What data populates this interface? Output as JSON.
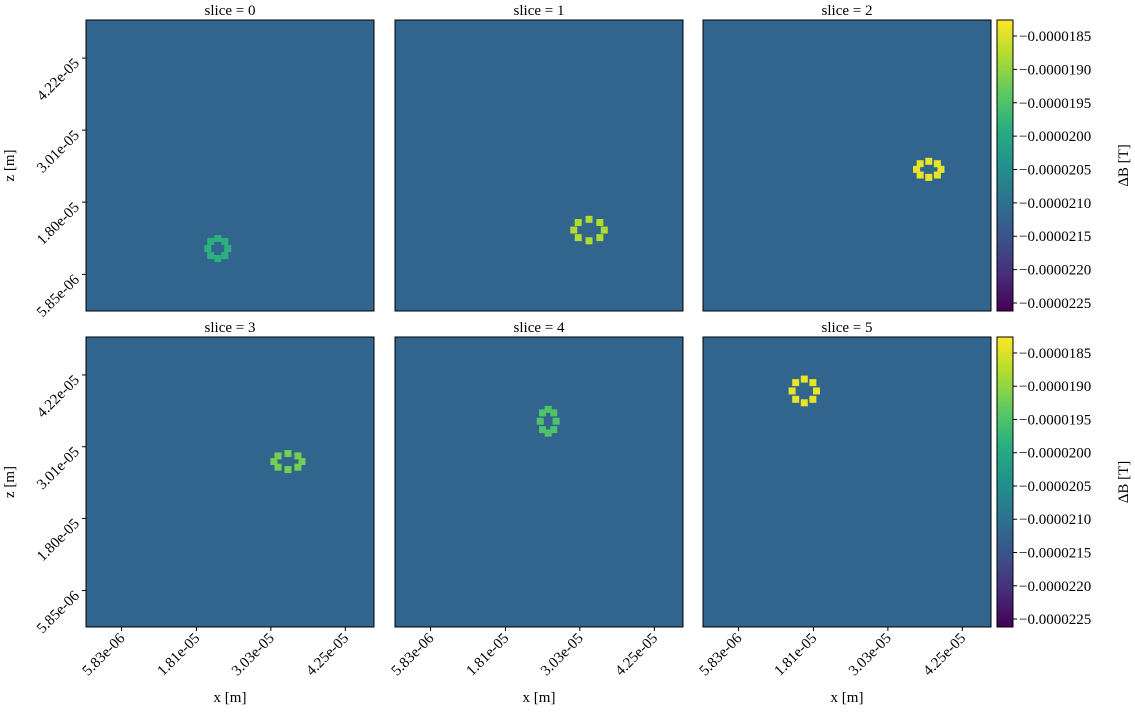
{
  "chart_data": [
    {
      "type": "heatmap",
      "title": "slice = 0",
      "ylabel": "z [m]",
      "x": [
        2.324e-05,
        2.276e-05,
        2.16e-05,
        2.044e-05,
        1.996e-05,
        2.044e-05,
        2.16e-05,
        2.276e-05
      ],
      "y": [
        1.02e-05,
        1.139e-05,
        1.188e-05,
        1.139e-05,
        1.02e-05,
        9.01e-06,
        8.52e-06,
        9.01e-06
      ],
      "values": [
        -1.985e-05,
        -1.985e-05,
        -1.985e-05,
        -1.985e-05,
        -1.985e-05,
        -1.985e-05,
        -1.985e-05,
        -1.985e-05
      ],
      "background": -2.12e-05,
      "xlim": [
        0,
        4.72e-05
      ],
      "ylim": [
        -3e-07,
        4.86e-05
      ],
      "yticks": [
        {
          "value": 5.85e-06,
          "label": "5.85e-06"
        },
        {
          "value": 1.8e-05,
          "label": "1.80e-05"
        },
        {
          "value": 3.01e-05,
          "label": "3.01e-05"
        },
        {
          "value": 4.22e-05,
          "label": "4.22e-05"
        }
      ]
    },
    {
      "type": "heatmap",
      "title": "slice = 1",
      "x": [
        3.43e-05,
        3.357e-05,
        3.18e-05,
        3.003e-05,
        2.93e-05,
        3.003e-05,
        3.18e-05,
        3.357e-05
      ],
      "y": [
        1.33e-05,
        1.457e-05,
        1.51e-05,
        1.457e-05,
        1.33e-05,
        1.203e-05,
        1.15e-05,
        1.203e-05
      ],
      "values": [
        -1.88e-05,
        -1.88e-05,
        -1.88e-05,
        -1.88e-05,
        -1.88e-05,
        -1.88e-05,
        -1.88e-05,
        -1.88e-05
      ],
      "background": -2.12e-05,
      "xlim": [
        0,
        4.72e-05
      ],
      "ylim": [
        -3e-07,
        4.86e-05
      ]
    },
    {
      "type": "heatmap",
      "title": "slice = 2",
      "x": [
        3.9e-05,
        3.841e-05,
        3.7e-05,
        3.559e-05,
        3.5e-05,
        3.559e-05,
        3.7e-05,
        3.841e-05
      ],
      "y": [
        2.35e-05,
        2.445e-05,
        2.485e-05,
        2.445e-05,
        2.35e-05,
        2.255e-05,
        2.215e-05,
        2.255e-05
      ],
      "values": [
        -1.84e-05,
        -1.84e-05,
        -1.84e-05,
        -1.84e-05,
        -1.84e-05,
        -1.84e-05,
        -1.84e-05,
        -1.84e-05
      ],
      "background": -2.12e-05,
      "xlim": [
        0,
        4.72e-05
      ],
      "ylim": [
        -3e-07,
        4.86e-05
      ]
    },
    {
      "type": "heatmap",
      "title": "slice = 3",
      "xlabel": "x [m]",
      "ylabel": "z [m]",
      "x": [
        3.54e-05,
        3.473e-05,
        3.31e-05,
        3.147e-05,
        3.08e-05,
        3.147e-05,
        3.31e-05,
        3.473e-05
      ],
      "y": [
        2.76e-05,
        2.855e-05,
        2.895e-05,
        2.855e-05,
        2.76e-05,
        2.665e-05,
        2.625e-05,
        2.665e-05
      ],
      "values": [
        -1.92e-05,
        -1.92e-05,
        -1.92e-05,
        -1.92e-05,
        -1.92e-05,
        -1.92e-05,
        -1.92e-05,
        -1.92e-05
      ],
      "background": -2.12e-05,
      "xlim": [
        0,
        4.72e-05
      ],
      "ylim": [
        -3e-07,
        4.86e-05
      ],
      "xticks": [
        {
          "value": 5.83e-06,
          "label": "5.83e-06"
        },
        {
          "value": 1.81e-05,
          "label": "1.81e-05"
        },
        {
          "value": 3.03e-05,
          "label": "3.03e-05"
        },
        {
          "value": 4.25e-05,
          "label": "4.25e-05"
        }
      ],
      "yticks": [
        {
          "value": 5.85e-06,
          "label": "5.85e-06"
        },
        {
          "value": 1.8e-05,
          "label": "1.80e-05"
        },
        {
          "value": 3.01e-05,
          "label": "3.01e-05"
        },
        {
          "value": 4.22e-05,
          "label": "4.22e-05"
        }
      ]
    },
    {
      "type": "heatmap",
      "title": "slice = 4",
      "xlabel": "x [m]",
      "x": [
        2.64e-05,
        2.602e-05,
        2.51e-05,
        2.418e-05,
        2.38e-05,
        2.418e-05,
        2.51e-05,
        2.602e-05
      ],
      "y": [
        3.44e-05,
        3.581e-05,
        3.64e-05,
        3.581e-05,
        3.44e-05,
        3.299e-05,
        3.24e-05,
        3.299e-05
      ],
      "values": [
        -1.95e-05,
        -1.95e-05,
        -1.95e-05,
        -1.95e-05,
        -1.95e-05,
        -1.95e-05,
        -1.95e-05,
        -1.95e-05
      ],
      "background": -2.12e-05,
      "xlim": [
        0,
        4.72e-05
      ],
      "ylim": [
        -3e-07,
        4.86e-05
      ],
      "xticks": [
        {
          "value": 5.83e-06,
          "label": "5.83e-06"
        },
        {
          "value": 1.81e-05,
          "label": "1.81e-05"
        },
        {
          "value": 3.03e-05,
          "label": "3.03e-05"
        },
        {
          "value": 4.25e-05,
          "label": "4.25e-05"
        }
      ]
    },
    {
      "type": "heatmap",
      "title": "slice = 5",
      "xlabel": "x [m]",
      "x": [
        1.86e-05,
        1.801e-05,
        1.66e-05,
        1.519e-05,
        1.46e-05,
        1.519e-05,
        1.66e-05,
        1.801e-05
      ],
      "y": [
        3.95e-05,
        4.091e-05,
        4.15e-05,
        4.091e-05,
        3.95e-05,
        3.809e-05,
        3.75e-05,
        3.809e-05
      ],
      "values": [
        -1.84e-05,
        -1.84e-05,
        -1.84e-05,
        -1.84e-05,
        -1.84e-05,
        -1.84e-05,
        -1.84e-05,
        -1.84e-05
      ],
      "background": -2.12e-05,
      "xlim": [
        0,
        4.72e-05
      ],
      "ylim": [
        -3e-07,
        4.86e-05
      ],
      "xticks": [
        {
          "value": 5.83e-06,
          "label": "5.83e-06"
        },
        {
          "value": 1.81e-05,
          "label": "1.81e-05"
        },
        {
          "value": 3.03e-05,
          "label": "3.03e-05"
        },
        {
          "value": 4.25e-05,
          "label": "4.25e-05"
        }
      ]
    }
  ],
  "colorbar": {
    "label": "ΔB [T]",
    "clim": [
      -2.262e-05,
      -1.826e-05
    ],
    "ticks": [
      {
        "value": -1.85e-05,
        "label": "−0.0000185"
      },
      {
        "value": -1.9e-05,
        "label": "−0.0000190"
      },
      {
        "value": -1.95e-05,
        "label": "−0.0000195"
      },
      {
        "value": -2e-05,
        "label": "−0.0000200"
      },
      {
        "value": -2.05e-05,
        "label": "−0.0000205"
      },
      {
        "value": -2.1e-05,
        "label": "−0.0000210"
      },
      {
        "value": -2.15e-05,
        "label": "−0.0000215"
      },
      {
        "value": -2.2e-05,
        "label": "−0.0000220"
      },
      {
        "value": -2.25e-05,
        "label": "−0.0000225"
      }
    ]
  }
}
